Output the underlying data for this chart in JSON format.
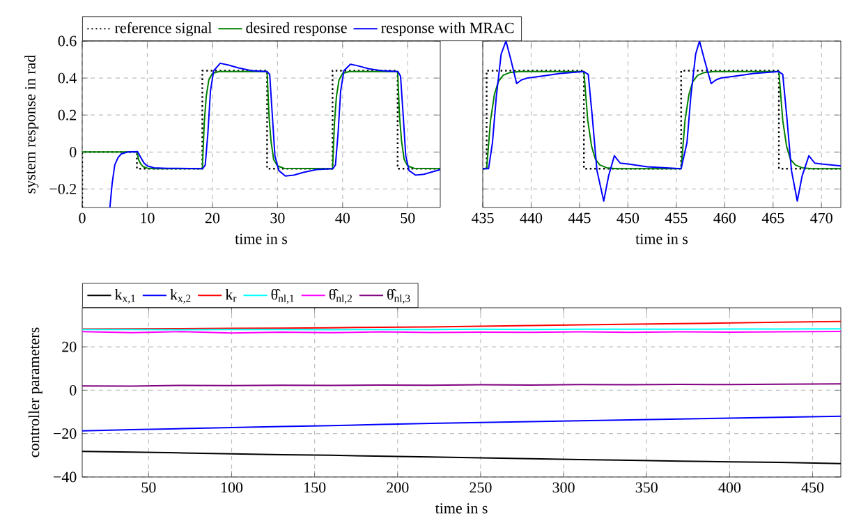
{
  "chart_data": [
    {
      "type": "line",
      "xlabel": "time in s",
      "ylabel": "system response in rad",
      "xlim": [
        0,
        55
      ],
      "ylim": [
        -0.3,
        0.6
      ],
      "xticks": [
        0,
        10,
        20,
        30,
        40,
        50
      ],
      "yticks": [
        {
          "value": -0.2,
          "label": "−0.2"
        },
        {
          "value": 0,
          "label": "0"
        },
        0.2,
        0.4,
        0.6
      ],
      "grid": true,
      "legend": "top",
      "series": [
        {
          "name": "reference signal",
          "color": "#000000",
          "line_style": "dotted",
          "x": [
            0,
            0,
            8.4,
            8.4,
            18.45,
            18.45,
            28.4,
            28.4,
            38.45,
            38.45,
            48.45,
            48.45,
            55
          ],
          "values": [
            -0.3,
            0,
            0,
            -0.09,
            -0.09,
            0.44,
            0.44,
            -0.09,
            -0.09,
            0.44,
            0.44,
            -0.09,
            -0.09
          ]
        },
        {
          "name": "desired response",
          "color": "#008000",
          "x": [
            0,
            8.4,
            8.7,
            9.0,
            9.4,
            10,
            11,
            18.45,
            18.75,
            19.05,
            19.45,
            20,
            21,
            28.4,
            28.7,
            29.0,
            29.4,
            30,
            31,
            38.45,
            38.75,
            39.05,
            39.45,
            40,
            41,
            48.45,
            48.75,
            49.05,
            49.45,
            50,
            51,
            55
          ],
          "values": [
            0,
            0,
            -0.045,
            -0.065,
            -0.08,
            -0.087,
            -0.09,
            -0.09,
            0.16,
            0.3,
            0.39,
            0.425,
            0.435,
            0.435,
            0.19,
            0.06,
            -0.04,
            -0.075,
            -0.088,
            -0.09,
            0.16,
            0.3,
            0.39,
            0.425,
            0.435,
            0.435,
            0.19,
            0.06,
            -0.04,
            -0.075,
            -0.088,
            -0.09
          ]
        },
        {
          "name": "response with MRAC",
          "color": "#0000ff",
          "x": [
            4.25,
            4.6,
            5,
            5.5,
            6,
            7,
            8.5,
            9,
            9.5,
            10,
            11,
            13,
            18.5,
            18.9,
            19.3,
            19.7,
            20.2,
            21.2,
            22.5,
            24,
            26,
            28.4,
            28.8,
            29.2,
            29.6,
            30.2,
            31.2,
            32.5,
            34,
            36,
            38.5,
            38.9,
            39.3,
            39.7,
            40.2,
            41.2,
            42.5,
            44,
            46,
            48.5,
            48.9,
            49.3,
            49.7,
            50.2,
            51.2,
            52.5,
            55
          ],
          "values": [
            -0.3,
            -0.17,
            -0.07,
            -0.03,
            -0.01,
            0,
            0.002,
            -0.03,
            -0.06,
            -0.075,
            -0.085,
            -0.088,
            -0.09,
            -0.07,
            0.1,
            0.33,
            0.44,
            0.48,
            0.47,
            0.455,
            0.44,
            0.435,
            0.42,
            0.2,
            -0.02,
            -0.1,
            -0.13,
            -0.125,
            -0.11,
            -0.095,
            -0.09,
            -0.07,
            0.1,
            0.33,
            0.44,
            0.475,
            0.465,
            0.45,
            0.44,
            0.435,
            0.41,
            0.2,
            -0.02,
            -0.1,
            -0.125,
            -0.12,
            -0.095
          ]
        }
      ]
    },
    {
      "type": "line",
      "xlabel": "time in s",
      "xlim": [
        435,
        472
      ],
      "ylim": [
        -0.3,
        0.6
      ],
      "xticks": [
        435,
        440,
        445,
        450,
        455,
        460,
        465,
        470
      ],
      "yticks": [
        -0.2,
        0,
        0.2,
        0.4,
        0.6
      ],
      "grid": true,
      "tick_labels": "x",
      "series": [
        {
          "color": "#000000",
          "line_style": "dotted",
          "x": [
            435,
            435.4,
            435.4,
            445.45,
            445.45,
            455.5,
            455.5,
            465.6,
            465.6,
            472
          ],
          "values": [
            -0.09,
            -0.09,
            0.44,
            0.44,
            -0.09,
            -0.09,
            0.44,
            0.44,
            -0.09,
            -0.09
          ]
        },
        {
          "color": "#008000",
          "x": [
            435,
            435.4,
            435.8,
            436.2,
            436.6,
            437.1,
            437.8,
            438.8,
            445.45,
            445.85,
            446.25,
            446.65,
            447.1,
            447.8,
            448.8,
            455.5,
            455.9,
            456.3,
            456.7,
            457.2,
            457.9,
            458.9,
            465.6,
            466,
            466.4,
            466.8,
            467.3,
            468,
            469,
            472
          ],
          "values": [
            -0.09,
            -0.09,
            0.17,
            0.31,
            0.38,
            0.415,
            0.43,
            0.435,
            0.435,
            0.17,
            0.03,
            -0.04,
            -0.07,
            -0.085,
            -0.09,
            -0.09,
            0.17,
            0.31,
            0.38,
            0.415,
            0.43,
            0.435,
            0.435,
            0.17,
            0.03,
            -0.04,
            -0.07,
            -0.085,
            -0.09,
            -0.09
          ]
        },
        {
          "color": "#0000ff",
          "x": [
            435,
            435.6,
            436,
            436.4,
            436.9,
            437.4,
            437.9,
            438.5,
            439,
            439.6,
            441,
            443,
            445.45,
            445.9,
            446.3,
            446.8,
            447.5,
            448,
            448.6,
            449.2,
            450,
            452,
            455.5,
            456.1,
            456.5,
            457,
            457.4,
            457.9,
            458.6,
            459.1,
            459.6,
            461,
            463,
            465.6,
            466,
            466.4,
            466.9,
            467.5,
            468,
            468.7,
            469.3,
            470,
            472
          ],
          "values": [
            -0.09,
            -0.09,
            0.05,
            0.3,
            0.53,
            0.6,
            0.5,
            0.37,
            0.39,
            0.4,
            0.41,
            0.425,
            0.435,
            0.42,
            0.2,
            -0.1,
            -0.265,
            -0.13,
            -0.02,
            -0.06,
            -0.065,
            -0.08,
            -0.09,
            0.05,
            0.3,
            0.53,
            0.6,
            0.5,
            0.37,
            0.39,
            0.4,
            0.41,
            0.425,
            0.435,
            0.42,
            0.2,
            -0.1,
            -0.265,
            -0.13,
            -0.02,
            -0.06,
            -0.065,
            -0.075
          ]
        }
      ]
    },
    {
      "type": "line",
      "xlabel": "time in s",
      "ylabel": "controller parameters",
      "xlim": [
        10,
        467
      ],
      "ylim": [
        -40,
        38
      ],
      "xticks": [
        50,
        100,
        150,
        200,
        250,
        300,
        350,
        400,
        450
      ],
      "yticks": [
        {
          "value": -40,
          "label": "−40"
        },
        {
          "value": -20,
          "label": "−20"
        },
        0,
        20
      ],
      "grid": true,
      "legend": "top",
      "series": [
        {
          "name": "k$_{x,1}$",
          "color": "#000000",
          "x": [
            10,
            40,
            70,
            100,
            130,
            160,
            190,
            220,
            250,
            280,
            310,
            340,
            370,
            400,
            430,
            467
          ],
          "values": [
            -28.2,
            -28.5,
            -28.9,
            -29.3,
            -29.7,
            -30.0,
            -30.4,
            -30.8,
            -31.2,
            -31.6,
            -32.0,
            -32.3,
            -32.7,
            -33.0,
            -33.3,
            -33.8
          ]
        },
        {
          "name": "k$_{x,2}$",
          "color": "#0000ff",
          "x": [
            10,
            40,
            70,
            100,
            130,
            160,
            190,
            220,
            250,
            280,
            310,
            340,
            370,
            400,
            430,
            467
          ],
          "values": [
            -18.7,
            -18.2,
            -17.7,
            -17.2,
            -16.7,
            -16.3,
            -15.8,
            -15.3,
            -14.9,
            -14.5,
            -14.1,
            -13.7,
            -13.3,
            -12.9,
            -12.5,
            -12.0
          ]
        },
        {
          "name": "k$_{r}$",
          "color": "#ff0000",
          "x": [
            10,
            40,
            70,
            100,
            130,
            160,
            190,
            220,
            250,
            280,
            310,
            340,
            370,
            400,
            430,
            467
          ],
          "values": [
            28.2,
            28.3,
            28.4,
            28.5,
            28.6,
            28.8,
            29.0,
            29.2,
            29.5,
            29.8,
            30.1,
            30.4,
            30.7,
            31.0,
            31.3,
            31.7
          ]
        },
        {
          "name": "θ̂$_{nl,1}$",
          "color": "#00ffff",
          "x": [
            10,
            40,
            70,
            100,
            130,
            160,
            190,
            220,
            250,
            280,
            310,
            340,
            370,
            400,
            430,
            467
          ],
          "values": [
            28.0,
            28.0,
            27.9,
            28.0,
            28.0,
            27.9,
            28.0,
            28.0,
            28.1,
            28.0,
            28.1,
            28.1,
            28.1,
            28.2,
            28.2,
            28.3
          ]
        },
        {
          "name": "θ̂$_{nl,2}$",
          "color": "#ff00ff",
          "x": [
            10,
            40,
            70,
            100,
            130,
            160,
            190,
            220,
            250,
            280,
            310,
            340,
            370,
            400,
            430,
            467
          ],
          "values": [
            27.0,
            26.5,
            27.0,
            26.4,
            26.8,
            26.5,
            26.9,
            26.6,
            26.8,
            26.7,
            26.9,
            26.7,
            26.9,
            26.8,
            26.9,
            27.1
          ]
        },
        {
          "name": "θ̂$_{nl,3}$",
          "color": "#800080",
          "x": [
            10,
            40,
            70,
            100,
            130,
            160,
            190,
            220,
            250,
            280,
            310,
            340,
            370,
            400,
            430,
            467
          ],
          "values": [
            2.0,
            1.9,
            2.2,
            2.1,
            2.3,
            2.2,
            2.4,
            2.3,
            2.5,
            2.4,
            2.6,
            2.5,
            2.7,
            2.6,
            2.8,
            2.9
          ]
        }
      ]
    }
  ]
}
